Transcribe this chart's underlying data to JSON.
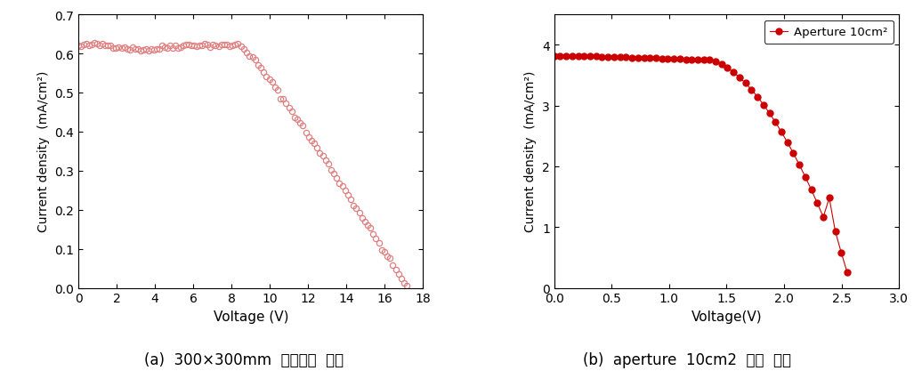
{
  "plot_a": {
    "title": "(a)  300×300mm  서브모듈  효율",
    "xlabel": "Voltage (V)",
    "ylabel": "Current density  (mA/cm²)",
    "xlim": [
      0,
      18
    ],
    "ylim": [
      0,
      0.7
    ],
    "xticks": [
      0,
      2,
      4,
      6,
      8,
      10,
      12,
      14,
      16,
      18
    ],
    "yticks": [
      0.0,
      0.1,
      0.2,
      0.3,
      0.4,
      0.5,
      0.6,
      0.7
    ],
    "color": "#e08080",
    "marker": "o",
    "markersize": 4.5,
    "linewidth": 0
  },
  "plot_b": {
    "title": "(b)  aperture  10cm2  기준  효율",
    "xlabel": "Voltage(V)",
    "ylabel": "Current density  (mA/cm²)",
    "xlim": [
      0,
      3.0
    ],
    "ylim": [
      0,
      4.5
    ],
    "xticks": [
      0.0,
      0.5,
      1.0,
      1.5,
      2.0,
      2.5,
      3.0
    ],
    "yticks": [
      0,
      1,
      2,
      3,
      4
    ],
    "color": "#cc0000",
    "marker": "o",
    "markersize": 5,
    "linewidth": 0.8,
    "legend_label": "Aperture 10cm²"
  },
  "figsize": [
    10.36,
    4.27
  ],
  "dpi": 100
}
